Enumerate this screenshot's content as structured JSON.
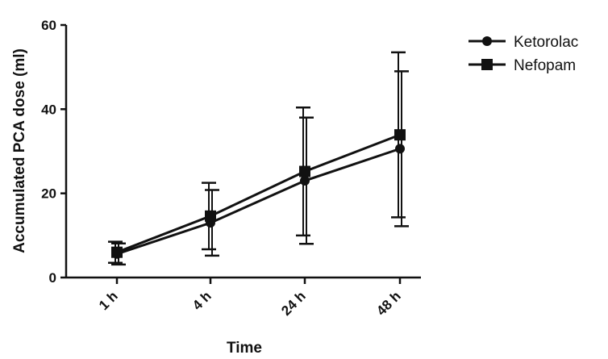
{
  "chart_data": {
    "type": "line",
    "title": "",
    "xlabel": "Time",
    "ylabel": "Accumulated PCA dose (ml)",
    "categories": [
      "1 h",
      "4 h",
      "24 h",
      "48 h"
    ],
    "ylim": [
      0,
      60
    ],
    "yticks": [
      0,
      20,
      40,
      60
    ],
    "grid": false,
    "legend_position": "top-right",
    "series": [
      {
        "name": "Ketorolac",
        "marker": "circle",
        "values": [
          5.6,
          13.0,
          23.0,
          30.6
        ],
        "err_low": [
          3.1,
          5.2,
          8.0,
          12.2
        ],
        "err_high": [
          8.1,
          20.8,
          38.0,
          49.0
        ]
      },
      {
        "name": "Nefopam",
        "marker": "square",
        "values": [
          6.0,
          14.6,
          25.2,
          33.9
        ],
        "err_low": [
          3.5,
          6.7,
          10.0,
          14.3
        ],
        "err_high": [
          8.5,
          22.5,
          40.4,
          53.5
        ]
      }
    ]
  }
}
